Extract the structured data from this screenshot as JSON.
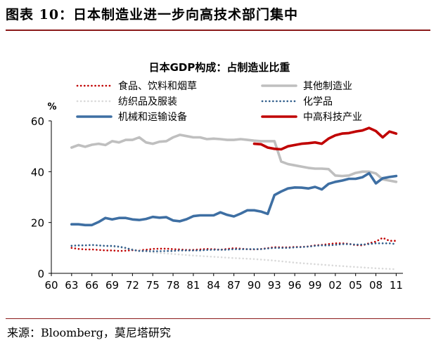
{
  "figure": {
    "title": "图表 10：日本制造业进一步向高技术部门集中",
    "source": "来源：Bloomberg，莫尼塔研究"
  },
  "chart_data": {
    "type": "line",
    "title": "日本GDP构成：占制造业比重",
    "ylabel": "%",
    "xlim": [
      60,
      12
    ],
    "ylim": [
      0,
      60
    ],
    "x_ticks": [
      "60",
      "63",
      "66",
      "69",
      "72",
      "75",
      "78",
      "81",
      "84",
      "87",
      "90",
      "93",
      "96",
      "99",
      "02",
      "05",
      "08",
      "11"
    ],
    "y_ticks": [
      "0",
      "20",
      "40",
      "60"
    ],
    "grid": false,
    "legend_position": "top",
    "series": [
      {
        "name": "食品、饮料和烟草",
        "color": "#c00000",
        "style": "dotted",
        "x": [
          63,
          64,
          65,
          66,
          67,
          68,
          69,
          70,
          71,
          72,
          73,
          74,
          75,
          76,
          77,
          78,
          79,
          80,
          81,
          82,
          83,
          84,
          85,
          86,
          87,
          88,
          89,
          90,
          91,
          92,
          93,
          94,
          95,
          96,
          97,
          98,
          99,
          100,
          101,
          102,
          103,
          104,
          105,
          106,
          107,
          108,
          109,
          110,
          111
        ],
        "y": [
          10,
          9.6,
          9.4,
          9.4,
          9.2,
          9,
          9,
          8.8,
          8.9,
          9.1,
          9.1,
          9.3,
          9.6,
          9.7,
          9.7,
          9.5,
          9.4,
          9.2,
          9.2,
          9.4,
          9.6,
          9.5,
          9.3,
          9.6,
          9.9,
          9.7,
          9.5,
          9.4,
          9.6,
          9.9,
          10.3,
          10.2,
          10.2,
          10.4,
          10.4,
          10.6,
          11,
          11.2,
          11.5,
          11.8,
          11.8,
          11.6,
          11.1,
          11,
          11.8,
          12.5,
          14,
          12.8,
          12.8
        ]
      },
      {
        "name": "其他制造业",
        "color": "#bfbfbf",
        "style": "solid",
        "x": [
          63,
          64,
          65,
          66,
          67,
          68,
          69,
          70,
          71,
          72,
          73,
          74,
          75,
          76,
          77,
          78,
          79,
          80,
          81,
          82,
          83,
          84,
          85,
          86,
          87,
          88,
          89,
          90,
          91,
          92,
          93,
          94,
          95,
          96,
          97,
          98,
          99,
          100,
          101,
          102,
          103,
          104,
          105,
          106,
          107,
          108,
          109,
          110,
          111
        ],
        "y": [
          49.5,
          50.5,
          49.8,
          50.6,
          51,
          50.5,
          52,
          51.5,
          52.5,
          52.5,
          53.5,
          51.5,
          51,
          51.8,
          52,
          53.5,
          54.5,
          54,
          53.5,
          53.5,
          52.8,
          53,
          52.8,
          52.5,
          52.5,
          52.8,
          52.5,
          52.2,
          52,
          52,
          52,
          44,
          43,
          42.5,
          42,
          41.5,
          41.2,
          41.2,
          41,
          38.5,
          38.3,
          38.5,
          39.5,
          40,
          40,
          39.3,
          37,
          36.5,
          36
        ]
      },
      {
        "name": "纺织品及服装",
        "color": "#d9d9d9",
        "style": "dotted",
        "x": [
          63,
          66,
          69,
          72,
          75,
          78,
          81,
          84,
          87,
          90,
          93,
          96,
          99,
          102,
          105,
          108,
          111
        ],
        "y": [
          11,
          11,
          10.5,
          9.5,
          8.2,
          7.6,
          7,
          6.5,
          6,
          5.6,
          5,
          4.2,
          3.6,
          3,
          2.5,
          2,
          1.6
        ]
      },
      {
        "name": "化学品",
        "color": "#2e5c8a",
        "style": "dotted",
        "x": [
          63,
          64,
          65,
          66,
          67,
          68,
          69,
          70,
          71,
          72,
          73,
          74,
          75,
          76,
          77,
          78,
          79,
          80,
          81,
          82,
          83,
          84,
          85,
          86,
          87,
          88,
          89,
          90,
          91,
          92,
          93,
          94,
          95,
          96,
          97,
          98,
          99,
          100,
          101,
          102,
          103,
          104,
          105,
          106,
          107,
          108,
          109,
          110,
          111
        ],
        "y": [
          10.8,
          11,
          11,
          11.2,
          11,
          10.8,
          10.8,
          10.5,
          10,
          9.2,
          8.8,
          8.8,
          8.7,
          8.7,
          8.8,
          8.8,
          9,
          9,
          9,
          9,
          9.2,
          9.3,
          9.3,
          9.3,
          9.5,
          9.5,
          9.5,
          9.5,
          9.5,
          9.8,
          10,
          10,
          10,
          10.2,
          10.3,
          10.5,
          10.8,
          11,
          11,
          11.2,
          11.5,
          11.5,
          11.3,
          11.3,
          11.5,
          11.8,
          11.8,
          11.8,
          11.5
        ]
      },
      {
        "name": "机械和运输设备",
        "color": "#3e6fa3",
        "style": "solid",
        "x": [
          63,
          64,
          65,
          66,
          67,
          68,
          69,
          70,
          71,
          72,
          73,
          74,
          75,
          76,
          77,
          78,
          79,
          80,
          81,
          82,
          83,
          84,
          85,
          86,
          87,
          88,
          89,
          90,
          91,
          92,
          93,
          94,
          95,
          96,
          97,
          98,
          99,
          100,
          101,
          102,
          103,
          104,
          105,
          106,
          107,
          108,
          109,
          110,
          111
        ],
        "y": [
          19.3,
          19.3,
          19,
          19,
          20.2,
          21.8,
          21.2,
          21.8,
          21.8,
          21.2,
          21,
          21.4,
          22.2,
          21.9,
          22.1,
          20.8,
          20.5,
          21.3,
          22.5,
          22.8,
          22.8,
          22.8,
          24,
          23,
          22.4,
          23.5,
          24.8,
          24.8,
          24.3,
          23.4,
          30.8,
          32.2,
          33.4,
          33.8,
          33.7,
          33.4,
          34,
          33,
          35.2,
          36,
          36.5,
          37.2,
          37.2,
          37.8,
          39.4,
          35.4,
          37.4,
          37.9,
          38.3
        ]
      },
      {
        "name": "中高科技产业",
        "color": "#c00000",
        "style": "solid",
        "x": [
          90,
          91,
          92,
          93,
          94,
          95,
          96,
          97,
          98,
          99,
          100,
          101,
          102,
          103,
          104,
          105,
          106,
          107,
          108,
          109,
          110,
          111
        ],
        "y": [
          51,
          50.8,
          49.5,
          49,
          48.8,
          50,
          50.5,
          51,
          51.2,
          51.5,
          51,
          53,
          54.3,
          55,
          55.2,
          55.8,
          56.2,
          57.2,
          56,
          53.5,
          55.8,
          55
        ]
      }
    ]
  }
}
